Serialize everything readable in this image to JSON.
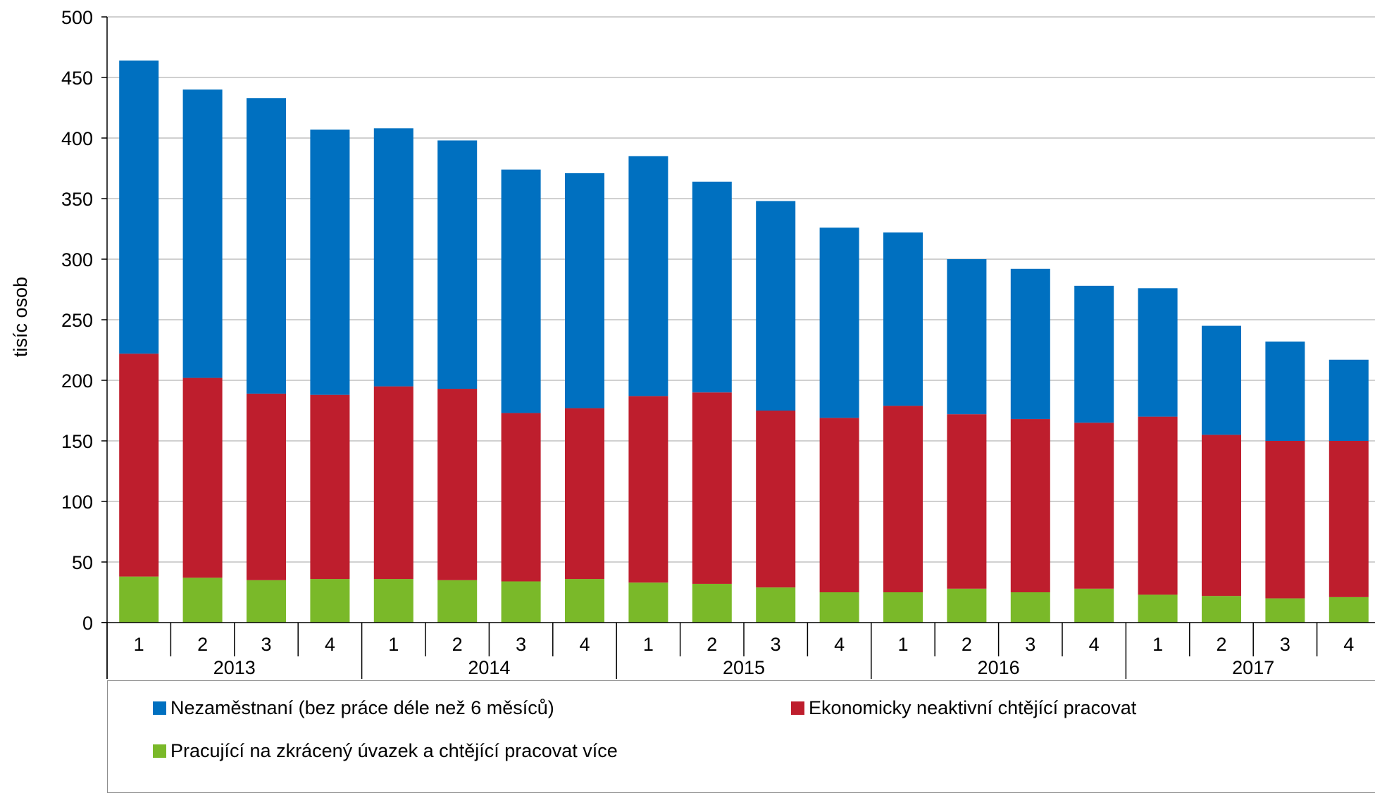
{
  "chart_data": {
    "type": "bar",
    "stacked": true,
    "ylabel": "tisíc osob",
    "ylim": [
      0,
      500
    ],
    "yticks": [
      0,
      50,
      100,
      150,
      200,
      250,
      300,
      350,
      400,
      450,
      500
    ],
    "grid": true,
    "legend_position": "bottom",
    "years": [
      "2013",
      "2014",
      "2015",
      "2016",
      "2017"
    ],
    "categories": [
      "1",
      "2",
      "3",
      "4",
      "1",
      "2",
      "3",
      "4",
      "1",
      "2",
      "3",
      "4",
      "1",
      "2",
      "3",
      "4",
      "1",
      "2",
      "3",
      "4"
    ],
    "series": [
      {
        "name": "Pracující na zkrácený úvazek a chtějící pracovat více",
        "color": "#7ab929",
        "values": [
          38,
          37,
          35,
          36,
          36,
          35,
          34,
          36,
          33,
          32,
          29,
          25,
          25,
          28,
          25,
          28,
          23,
          22,
          20,
          21
        ]
      },
      {
        "name": "Ekonomicky neaktivní chtějící pracovat",
        "color": "#be1e2d",
        "values": [
          184,
          165,
          154,
          152,
          159,
          158,
          139,
          141,
          154,
          158,
          146,
          144,
          154,
          144,
          143,
          137,
          147,
          133,
          130,
          129
        ]
      },
      {
        "name": "Nezaměstnaní (bez práce déle než 6 měsíců)",
        "color": "#0070c0",
        "values": [
          242,
          238,
          244,
          219,
          213,
          205,
          201,
          194,
          198,
          174,
          173,
          157,
          143,
          128,
          124,
          113,
          106,
          90,
          82,
          67
        ]
      }
    ]
  },
  "legend": {
    "item1": "Nezaměstnaní (bez práce déle než 6 měsíců)",
    "item2": "Ekonomicky neaktivní chtějící pracovat",
    "item3": "Pracující na zkrácený úvazek a chtějící pracovat více"
  }
}
